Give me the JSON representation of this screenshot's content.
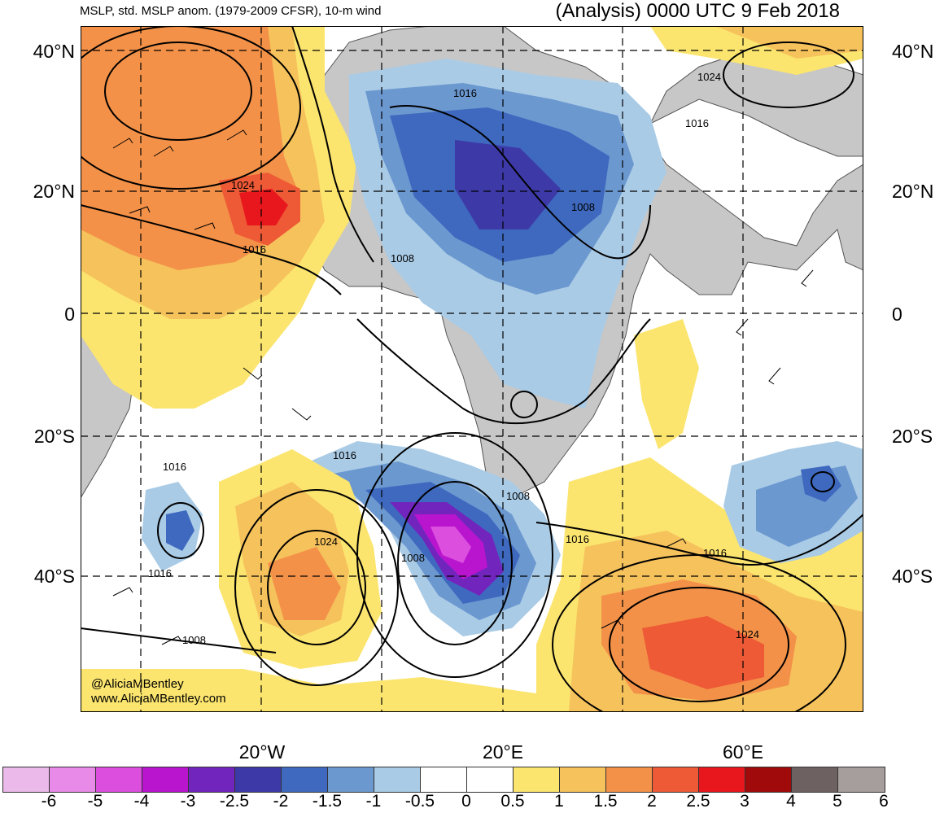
{
  "header": {
    "left_title": "MSLP, std. MSLP anom. (1979-2009 CFSR), 10-m wind",
    "right_title": "(Analysis) 0000 UTC 9 Feb 2018"
  },
  "axes": {
    "lat_labels": [
      "40°N",
      "20°N",
      "0",
      "20°S",
      "40°S"
    ],
    "lon_labels": [
      "20°W",
      "20°E",
      "60°E"
    ]
  },
  "credit": {
    "handle": "@AliciaMBentley",
    "site": "www.AliciaMBentley.com"
  },
  "contour_labels": [
    "1016",
    "1024",
    "1024",
    "1016",
    "1016",
    "1008",
    "1008",
    "1016",
    "1008",
    "1016",
    "1024",
    "1016",
    "1008",
    "1016",
    "1016",
    "1024",
    "1008",
    "1016"
  ],
  "colorbar": {
    "labels": [
      "-6",
      "-5",
      "-4",
      "-3",
      "-2.5",
      "-2",
      "-1.5",
      "-1",
      "-0.5",
      "0",
      "0.5",
      "1",
      "1.5",
      "2",
      "2.5",
      "3",
      "4",
      "5",
      "6"
    ],
    "colors": [
      "#ecbaea",
      "#e88ae8",
      "#dc4fde",
      "#b915cf",
      "#7125bd",
      "#3d3aa8",
      "#3e69bf",
      "#6c98d0",
      "#a9cbe6",
      "#ffffff",
      "#ffffff",
      "#fbe56f",
      "#f6c25c",
      "#f39148",
      "#ee5936",
      "#e8171d",
      "#a10a0a",
      "#6e6162",
      "#a69d9d"
    ]
  },
  "palette": {
    "land": "#c7c7c7",
    "coast": "#555555",
    "contour": "#000000",
    "grid": "#000000"
  }
}
